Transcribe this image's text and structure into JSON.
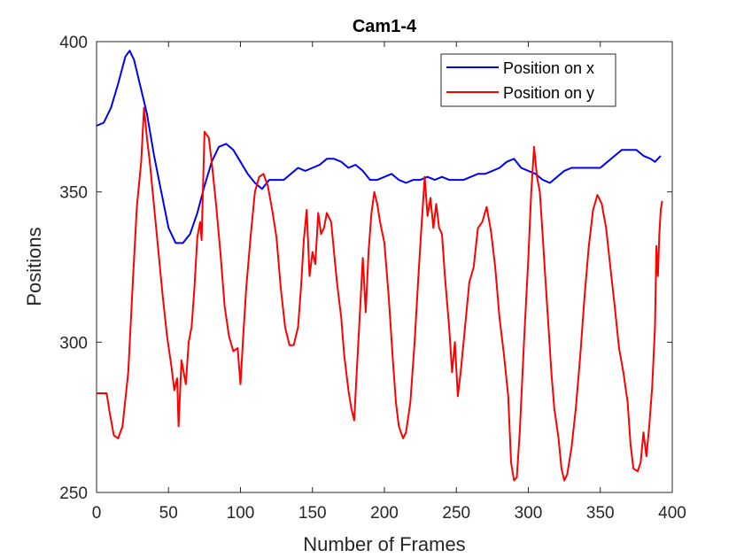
{
  "chart_data": {
    "type": "line",
    "title": "Cam1-4",
    "xlabel": "Number of Frames",
    "ylabel": "Positions",
    "xlim": [
      0,
      400
    ],
    "ylim": [
      250,
      400
    ],
    "xticks": [
      0,
      50,
      100,
      150,
      200,
      250,
      300,
      350,
      400
    ],
    "yticks": [
      250,
      300,
      350,
      400
    ],
    "legend_position": "top-right",
    "grid": false,
    "series": [
      {
        "name": "Position on x",
        "color": "#0000ff",
        "points": [
          [
            0,
            372
          ],
          [
            5,
            373
          ],
          [
            10,
            378
          ],
          [
            15,
            386
          ],
          [
            20,
            395
          ],
          [
            23,
            397
          ],
          [
            26,
            394
          ],
          [
            30,
            386
          ],
          [
            35,
            376
          ],
          [
            40,
            362
          ],
          [
            45,
            350
          ],
          [
            50,
            338
          ],
          [
            55,
            333
          ],
          [
            60,
            333
          ],
          [
            65,
            336
          ],
          [
            70,
            343
          ],
          [
            75,
            352
          ],
          [
            80,
            360
          ],
          [
            85,
            365
          ],
          [
            90,
            366
          ],
          [
            95,
            364
          ],
          [
            100,
            360
          ],
          [
            105,
            356
          ],
          [
            110,
            353
          ],
          [
            115,
            351
          ],
          [
            120,
            354
          ],
          [
            125,
            354
          ],
          [
            130,
            354
          ],
          [
            135,
            356
          ],
          [
            140,
            358
          ],
          [
            145,
            357
          ],
          [
            150,
            358
          ],
          [
            155,
            359
          ],
          [
            160,
            361
          ],
          [
            165,
            361
          ],
          [
            170,
            360
          ],
          [
            175,
            358
          ],
          [
            180,
            359
          ],
          [
            185,
            357
          ],
          [
            190,
            354
          ],
          [
            195,
            354
          ],
          [
            200,
            355
          ],
          [
            205,
            356
          ],
          [
            210,
            354
          ],
          [
            215,
            353
          ],
          [
            220,
            354
          ],
          [
            225,
            354
          ],
          [
            230,
            355
          ],
          [
            235,
            354
          ],
          [
            240,
            355
          ],
          [
            245,
            354
          ],
          [
            250,
            354
          ],
          [
            255,
            354
          ],
          [
            260,
            355
          ],
          [
            265,
            356
          ],
          [
            270,
            356
          ],
          [
            275,
            357
          ],
          [
            280,
            358
          ],
          [
            285,
            360
          ],
          [
            290,
            361
          ],
          [
            295,
            358
          ],
          [
            300,
            357
          ],
          [
            305,
            356
          ],
          [
            310,
            354
          ],
          [
            315,
            353
          ],
          [
            320,
            355
          ],
          [
            325,
            357
          ],
          [
            330,
            358
          ],
          [
            335,
            358
          ],
          [
            340,
            358
          ],
          [
            345,
            358
          ],
          [
            350,
            358
          ],
          [
            355,
            360
          ],
          [
            360,
            362
          ],
          [
            365,
            364
          ],
          [
            370,
            364
          ],
          [
            375,
            364
          ],
          [
            380,
            362
          ],
          [
            385,
            361
          ],
          [
            388,
            360
          ],
          [
            392,
            362
          ]
        ]
      },
      {
        "name": "Position on y",
        "color": "#ff0000",
        "points": [
          [
            0,
            283
          ],
          [
            7,
            283
          ],
          [
            9,
            277
          ],
          [
            12,
            269
          ],
          [
            15,
            268
          ],
          [
            18,
            272
          ],
          [
            22,
            290
          ],
          [
            25,
            318
          ],
          [
            28,
            345
          ],
          [
            31,
            360
          ],
          [
            33,
            378
          ],
          [
            35,
            368
          ],
          [
            37,
            360
          ],
          [
            40,
            345
          ],
          [
            43,
            330
          ],
          [
            46,
            315
          ],
          [
            49,
            302
          ],
          [
            52,
            292
          ],
          [
            54,
            284
          ],
          [
            56,
            288
          ],
          [
            57,
            272
          ],
          [
            59,
            294
          ],
          [
            62,
            286
          ],
          [
            64,
            300
          ],
          [
            66,
            305
          ],
          [
            68,
            318
          ],
          [
            70,
            335
          ],
          [
            72,
            340
          ],
          [
            73,
            334
          ],
          [
            75,
            370
          ],
          [
            78,
            368
          ],
          [
            80,
            360
          ],
          [
            83,
            346
          ],
          [
            86,
            330
          ],
          [
            89,
            312
          ],
          [
            92,
            302
          ],
          [
            95,
            297
          ],
          [
            98,
            298
          ],
          [
            100,
            286
          ],
          [
            102,
            303
          ],
          [
            104,
            318
          ],
          [
            107,
            335
          ],
          [
            110,
            350
          ],
          [
            113,
            355
          ],
          [
            116,
            356
          ],
          [
            119,
            352
          ],
          [
            122,
            344
          ],
          [
            125,
            335
          ],
          [
            128,
            318
          ],
          [
            131,
            305
          ],
          [
            134,
            299
          ],
          [
            137,
            299
          ],
          [
            140,
            305
          ],
          [
            142,
            318
          ],
          [
            144,
            334
          ],
          [
            146,
            344
          ],
          [
            148,
            322
          ],
          [
            150,
            330
          ],
          [
            152,
            326
          ],
          [
            154,
            343
          ],
          [
            156,
            336
          ],
          [
            158,
            338
          ],
          [
            160,
            343
          ],
          [
            163,
            340
          ],
          [
            165,
            330
          ],
          [
            167,
            320
          ],
          [
            170,
            308
          ],
          [
            172,
            296
          ],
          [
            175,
            284
          ],
          [
            177,
            278
          ],
          [
            179,
            274
          ],
          [
            181,
            292
          ],
          [
            183,
            310
          ],
          [
            185,
            328
          ],
          [
            187,
            310
          ],
          [
            189,
            330
          ],
          [
            191,
            343
          ],
          [
            193,
            350
          ],
          [
            195,
            346
          ],
          [
            197,
            340
          ],
          [
            200,
            333
          ],
          [
            203,
            315
          ],
          [
            206,
            293
          ],
          [
            208,
            280
          ],
          [
            210,
            272
          ],
          [
            213,
            268
          ],
          [
            215,
            270
          ],
          [
            218,
            280
          ],
          [
            221,
            300
          ],
          [
            224,
            325
          ],
          [
            226,
            340
          ],
          [
            228,
            355
          ],
          [
            230,
            342
          ],
          [
            232,
            348
          ],
          [
            234,
            338
          ],
          [
            236,
            346
          ],
          [
            238,
            338
          ],
          [
            240,
            336
          ],
          [
            242,
            322
          ],
          [
            245,
            305
          ],
          [
            247,
            290
          ],
          [
            249,
            300
          ],
          [
            251,
            282
          ],
          [
            253,
            290
          ],
          [
            256,
            305
          ],
          [
            259,
            320
          ],
          [
            262,
            325
          ],
          [
            265,
            338
          ],
          [
            268,
            340
          ],
          [
            271,
            345
          ],
          [
            274,
            337
          ],
          [
            277,
            325
          ],
          [
            280,
            308
          ],
          [
            283,
            296
          ],
          [
            286,
            282
          ],
          [
            288,
            260
          ],
          [
            290,
            254
          ],
          [
            292,
            255
          ],
          [
            294,
            270
          ],
          [
            297,
            300
          ],
          [
            300,
            328
          ],
          [
            302,
            350
          ],
          [
            304,
            365
          ],
          [
            306,
            355
          ],
          [
            308,
            350
          ],
          [
            310,
            335
          ],
          [
            312,
            320
          ],
          [
            314,
            305
          ],
          [
            316,
            290
          ],
          [
            318,
            278
          ],
          [
            321,
            268
          ],
          [
            323,
            258
          ],
          [
            325,
            254
          ],
          [
            327,
            256
          ],
          [
            330,
            265
          ],
          [
            333,
            278
          ],
          [
            336,
            295
          ],
          [
            339,
            315
          ],
          [
            342,
            332
          ],
          [
            345,
            344
          ],
          [
            348,
            349
          ],
          [
            351,
            346
          ],
          [
            354,
            338
          ],
          [
            357,
            325
          ],
          [
            360,
            312
          ],
          [
            363,
            298
          ],
          [
            366,
            290
          ],
          [
            369,
            280
          ],
          [
            371,
            266
          ],
          [
            373,
            258
          ],
          [
            376,
            257
          ],
          [
            378,
            260
          ],
          [
            380,
            270
          ],
          [
            382,
            262
          ],
          [
            384,
            272
          ],
          [
            386,
            285
          ],
          [
            388,
            305
          ],
          [
            389,
            332
          ],
          [
            390,
            322
          ],
          [
            391,
            336
          ],
          [
            392,
            344
          ],
          [
            393,
            347
          ]
        ]
      }
    ]
  }
}
